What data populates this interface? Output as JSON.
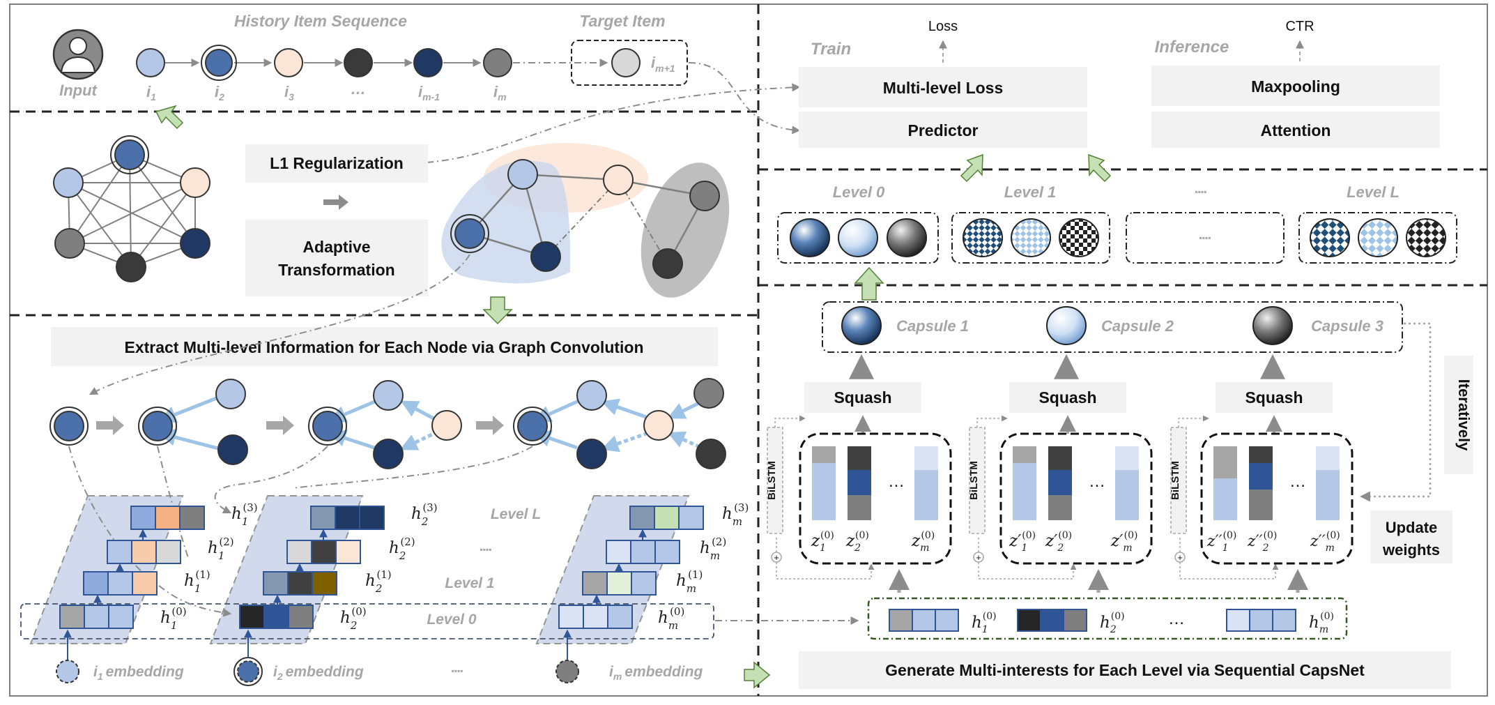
{
  "colors": {
    "light_blue": "#b4c7e7",
    "mid_blue": "#4c70a9",
    "navy": "#1f3864",
    "peach": "#fbe5d6",
    "orange": "#f4b183",
    "dark": "#3a3a3a",
    "gray": "#7f7f7f",
    "light_gray": "#d9d9d9",
    "green": "#c5e0b4",
    "olive": "#7f6000"
  },
  "top": {
    "history_title": "History Item Sequence",
    "target_title": "Target Item",
    "input_label": "Input",
    "seq_letter": "i",
    "seq_subs": [
      "1",
      "2",
      "3",
      "",
      "m-1",
      "m"
    ],
    "ellipsis": "…",
    "target_sub": "m+1"
  },
  "graph": {
    "reg_label": "L1 Regularization",
    "adapt_line1": "Adaptive",
    "adapt_line2": "Transformation"
  },
  "conv": {
    "title": "Extract Multi-level Information for Each Node via Graph Convolution",
    "level_L": "Level L",
    "level_1": "Level 1",
    "level_0": "Level 0",
    "dots": "▪▪▪▪",
    "emb_word": "embedding",
    "emb_subs": [
      "1",
      "2",
      "m"
    ],
    "h_letter": "h",
    "node_subs": [
      "1",
      "2",
      "m"
    ],
    "h_sups": [
      "(0)",
      "(1)",
      "(2)",
      "(3)"
    ]
  },
  "right": {
    "train": "Train",
    "inference": "Inference",
    "loss": "Loss",
    "ctr": "CTR",
    "multi_loss": "Multi-level Loss",
    "predictor": "Predictor",
    "maxpooling": "Maxpooling",
    "attention": "Attention",
    "levels": [
      "Level 0",
      "Level 1",
      "▪▪▪▪",
      "Level L"
    ],
    "level_dots": "▪▪▪▪",
    "capsules": [
      "Capsule 1",
      "Capsule 2",
      "Capsule 3"
    ],
    "squash": "Squash",
    "bilstm": "BiLSTM",
    "iteratively": "Iteratively",
    "update_line1": "Update",
    "update_line2": "weights",
    "z_letter": "z",
    "z_primes": [
      "",
      "′",
      "′′"
    ],
    "z_sup": "(0)",
    "z_subs": [
      "1",
      "2",
      "m"
    ],
    "gen_title": "Generate Multi-interests for Each Level via Sequential CapsNet",
    "plus": "+"
  }
}
